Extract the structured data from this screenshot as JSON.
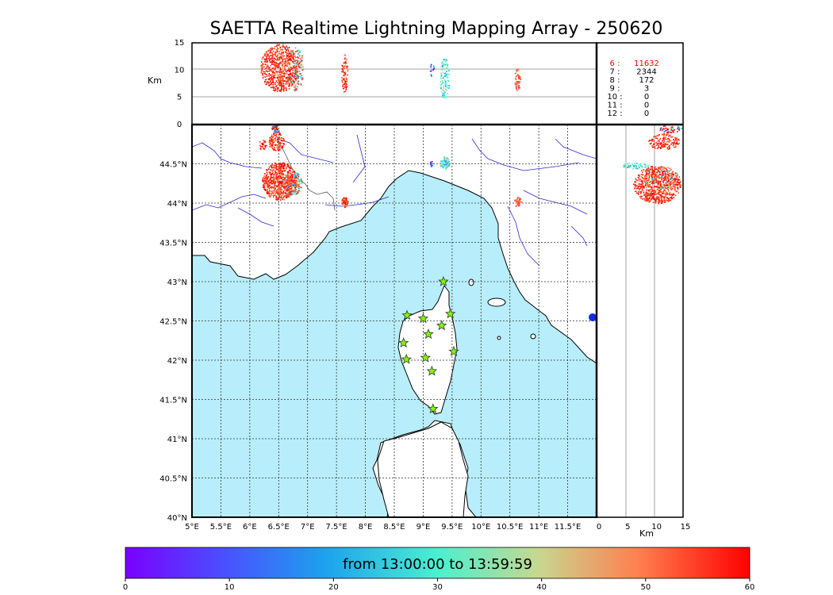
{
  "title": "SAETTA Realtime Lightning Mapping Array - 250620",
  "colors": {
    "sea": "#b8eefb",
    "land": "#ffffff",
    "coast": "#000000",
    "borders": "#555555",
    "rivers": "#2b2bd6",
    "grid": "#333333",
    "station_fill": "#7cfc00",
    "station_edge": "#333333",
    "highlight": "#ff0000"
  },
  "altitude_panel": {
    "ylabel": "Km",
    "yticks": [
      "0",
      "5",
      "10",
      "15"
    ]
  },
  "side_panel": {
    "xlabel": "Km",
    "xticks": [
      "0",
      "5",
      "10",
      "15"
    ]
  },
  "map": {
    "lon_ticks": [
      "5°E",
      "5.5°E",
      "6°E",
      "6.5°E",
      "7°E",
      "7.5°E",
      "8°E",
      "8.5°E",
      "9°E",
      "9.5°E",
      "10°E",
      "10.5°E",
      "11°E",
      "11.5°E"
    ],
    "lat_ticks": [
      "40°N",
      "40.5°N",
      "41°N",
      "41.5°N",
      "42°N",
      "42.5°N",
      "43°N",
      "43.5°N",
      "44°N",
      "44.5°N"
    ],
    "lon_range": [
      5.0,
      12.0
    ],
    "lat_range": [
      40.0,
      45.0
    ],
    "stations": [
      {
        "lon": 9.35,
        "lat": 43.0
      },
      {
        "lon": 8.72,
        "lat": 42.57
      },
      {
        "lon": 9.0,
        "lat": 42.53
      },
      {
        "lon": 9.47,
        "lat": 42.59
      },
      {
        "lon": 9.32,
        "lat": 42.44
      },
      {
        "lon": 9.09,
        "lat": 42.33
      },
      {
        "lon": 8.66,
        "lat": 42.22
      },
      {
        "lon": 9.53,
        "lat": 42.11
      },
      {
        "lon": 8.71,
        "lat": 42.01
      },
      {
        "lon": 9.04,
        "lat": 42.03
      },
      {
        "lon": 9.15,
        "lat": 41.86
      },
      {
        "lon": 9.17,
        "lat": 41.38
      }
    ]
  },
  "legend": [
    {
      "label": "6",
      "count": "11632",
      "highlight": true
    },
    {
      "label": "7",
      "count": "2344",
      "highlight": false
    },
    {
      "label": "8",
      "count": "172",
      "highlight": false
    },
    {
      "label": "9",
      "count": "3",
      "highlight": false
    },
    {
      "label": "10",
      "count": "0",
      "highlight": false
    },
    {
      "label": "11",
      "count": "0",
      "highlight": false
    },
    {
      "label": "12",
      "count": "0",
      "highlight": false
    }
  ],
  "colorbar": {
    "label": "from 13:00:00 to 13:59:59",
    "ticks": [
      "0",
      "10",
      "20",
      "30",
      "40",
      "50",
      "60"
    ],
    "range": [
      0,
      60
    ]
  }
}
